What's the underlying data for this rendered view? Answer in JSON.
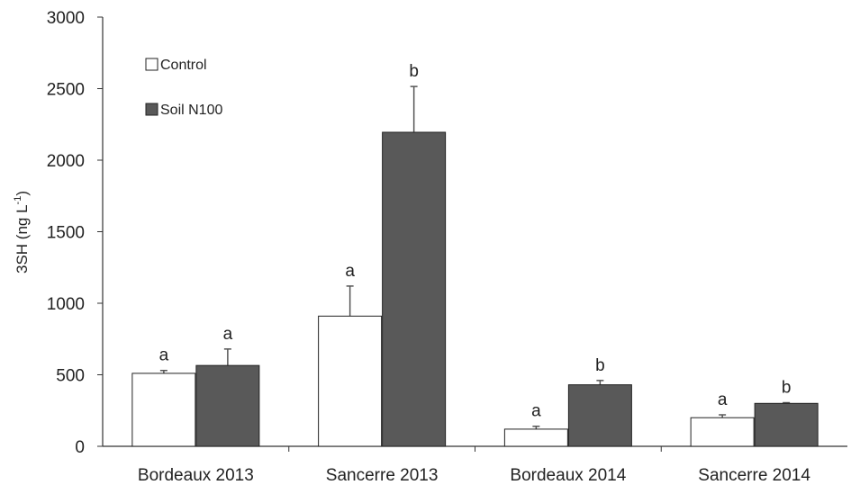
{
  "chart_data": {
    "type": "bar",
    "categories": [
      "Bordeaux 2013",
      "Sancerre 2013",
      "Bordeaux 2014",
      "Sancerre 2014"
    ],
    "series": [
      {
        "name": "Control",
        "color": "#ffffff",
        "values": [
          510,
          910,
          120,
          200
        ],
        "errors": [
          20,
          210,
          20,
          20
        ],
        "labels": [
          "a",
          "a",
          "a",
          "a"
        ]
      },
      {
        "name": "Soil N100",
        "color": "#595959",
        "values": [
          565,
          2195,
          430,
          300
        ],
        "errors": [
          115,
          320,
          30,
          5
        ],
        "labels": [
          "a",
          "b",
          "b",
          "b"
        ]
      }
    ],
    "ylabel_main": "3SH (ng L",
    "ylabel_sup": "-1",
    "ylabel_close": ")",
    "ylim": [
      0,
      3000
    ],
    "yticks": [
      "0",
      "500",
      "1000",
      "1500",
      "2000",
      "2500",
      "3000"
    ],
    "grid": false,
    "legend": "top-left"
  }
}
